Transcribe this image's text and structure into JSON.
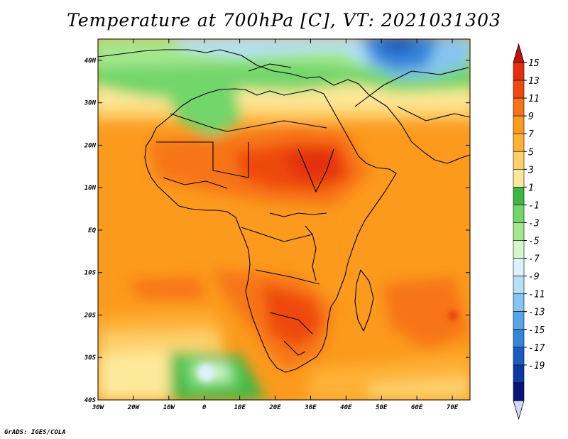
{
  "title": "Temperature at 700hPa [C], VT: 2021031303",
  "footer": "GrADS: IGES/COLA",
  "map": {
    "projection": "lat-lon",
    "lon_range": [
      -30,
      75
    ],
    "lat_range": [
      -40,
      45
    ],
    "lat_labels": [
      "40N",
      "30N",
      "20N",
      "10N",
      "EQ",
      "10S",
      "20S",
      "30S",
      "40S"
    ],
    "lon_labels": [
      "30W",
      "20W",
      "10W",
      "0",
      "10E",
      "20E",
      "30E",
      "40E",
      "50E",
      "60E",
      "70E"
    ],
    "field": "temperature at 700hPa"
  },
  "colorbar": {
    "labels": [
      "15",
      "13",
      "11",
      "9",
      "7",
      "5",
      "3",
      "1",
      "-1",
      "-3",
      "-5",
      "-7",
      "-9",
      "-11",
      "-13",
      "-15",
      "-17",
      "-19"
    ],
    "colors": [
      "#e2300f",
      "#ee4a10",
      "#f77416",
      "#fb9a1d",
      "#fdb236",
      "#fdd06b",
      "#fde99a",
      "#3cb744",
      "#72d66a",
      "#a4e78d",
      "#d4f5ce",
      "#dbf2fb",
      "#b4e0f7",
      "#85c5f1",
      "#58a6e8",
      "#3585da",
      "#1c5cc3",
      "#0b3aa0",
      "#07147a"
    ],
    "over_color": "#c0140a",
    "under_color": "#d8d8f2"
  }
}
